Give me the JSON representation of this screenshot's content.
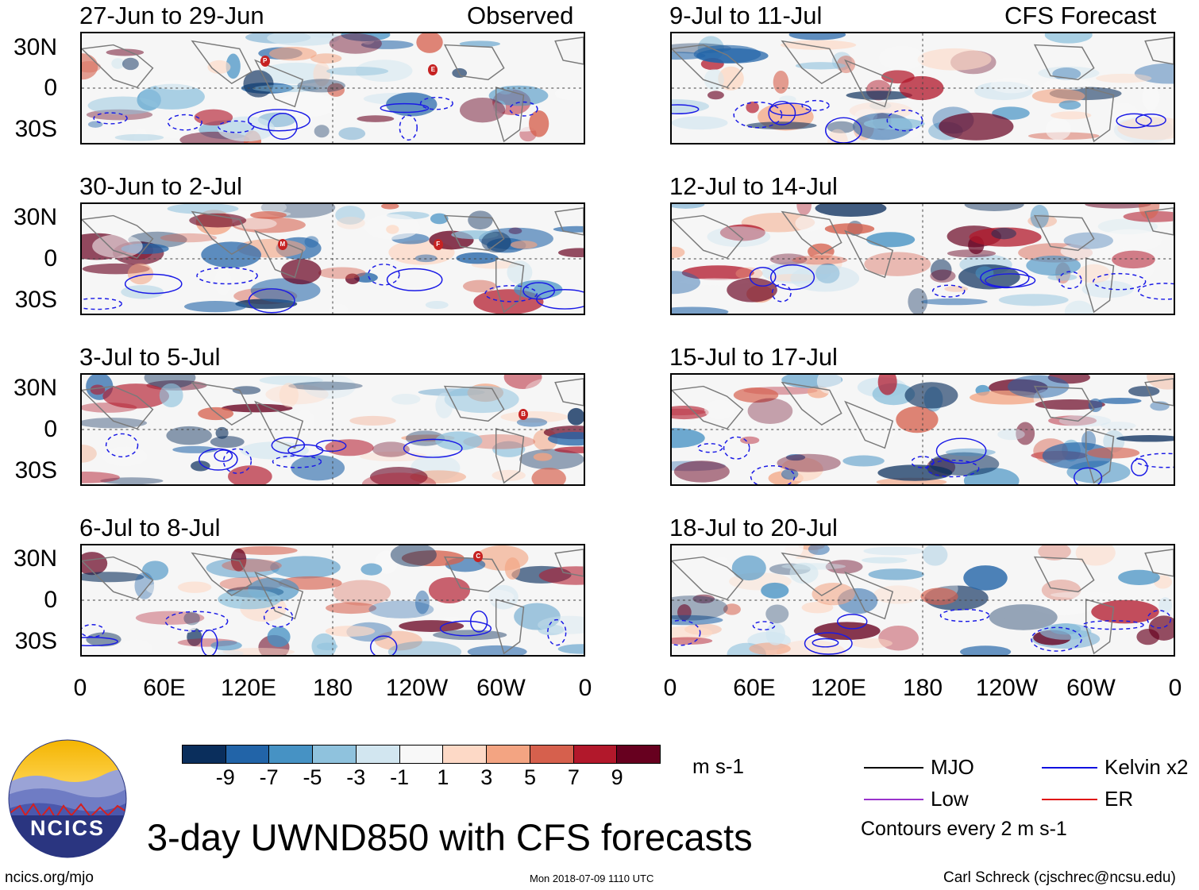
{
  "panels_left": [
    {
      "label": "27-Jun to 29-Jun"
    },
    {
      "label": "30-Jun to 2-Jul"
    },
    {
      "label": "3-Jul to 5-Jul"
    },
    {
      "label": "6-Jul to 8-Jul"
    }
  ],
  "panels_right": [
    {
      "label": "9-Jul to 11-Jul"
    },
    {
      "label": "12-Jul to 14-Jul"
    },
    {
      "label": "15-Jul to 17-Jul"
    },
    {
      "label": "18-Jul to 20-Jul"
    }
  ],
  "headers": {
    "observed": "Observed",
    "forecast": "CFS Forecast"
  },
  "lat_labels": [
    "30N",
    "0",
    "30S"
  ],
  "lon_labels": [
    "0",
    "60E",
    "120E",
    "180",
    "120W",
    "60W",
    "0"
  ],
  "storm_markers": [
    {
      "panel": 0,
      "letter": "P"
    },
    {
      "panel": 0,
      "letter": "E"
    },
    {
      "panel": 1,
      "letter": "M"
    },
    {
      "panel": 1,
      "letter": "F"
    },
    {
      "panel": 2,
      "letter": "B"
    },
    {
      "panel": 3,
      "letter": "C"
    }
  ],
  "colorbar": {
    "colors": [
      "#0a2e5c",
      "#2264a8",
      "#4692c4",
      "#8fc2dd",
      "#d2e6f0",
      "#f8f8f8",
      "#fdd9c6",
      "#f3a482",
      "#d6604d",
      "#b2182b",
      "#67001f"
    ],
    "labels": [
      "-9",
      "-7",
      "-5",
      "-3",
      "-1",
      "1",
      "3",
      "5",
      "7",
      "9"
    ],
    "unit": "m s-1"
  },
  "legend": {
    "items": [
      {
        "label": "MJO",
        "color": "#000000"
      },
      {
        "label": "Kelvin x2",
        "color": "#1010e0"
      },
      {
        "label": "Low",
        "color": "#9932cc"
      },
      {
        "label": "ER",
        "color": "#e01010"
      }
    ],
    "contour_note": "Contours every 2 m s-1"
  },
  "logo": {
    "text": "NCICS"
  },
  "title": "3-day UWND850 with CFS forecasts",
  "footer": {
    "left": "ncics.org/mjo",
    "center": "Mon 2018-07-09 1110 UTC",
    "right": "Carl Schreck (cjschrec@ncsu.edu)"
  }
}
